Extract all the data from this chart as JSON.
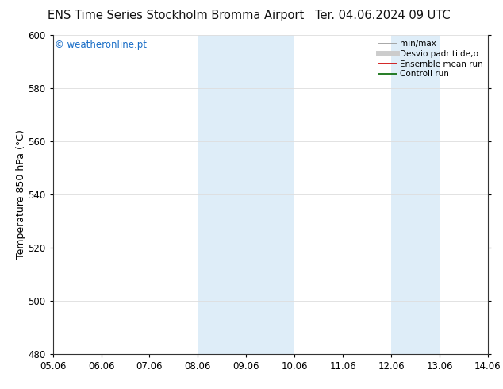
{
  "title_left": "ENS Time Series Stockholm Bromma Airport",
  "title_right": "Ter. 04.06.2024 09 UTC",
  "ylabel": "Temperature 850 hPa (°C)",
  "ylim": [
    480,
    600
  ],
  "yticks": [
    480,
    500,
    520,
    540,
    560,
    580,
    600
  ],
  "xlim": [
    0,
    9
  ],
  "xtick_labels": [
    "05.06",
    "06.06",
    "07.06",
    "08.06",
    "09.06",
    "10.06",
    "11.06",
    "12.06",
    "13.06",
    "14.06"
  ],
  "xtick_positions": [
    0,
    1,
    2,
    3,
    4,
    5,
    6,
    7,
    8,
    9
  ],
  "shaded_bands": [
    {
      "xmin": 3.0,
      "xmax": 5.0
    },
    {
      "xmin": 7.0,
      "xmax": 8.0
    }
  ],
  "band_color": "#deedf8",
  "watermark": "© weatheronline.pt",
  "watermark_color": "#1a6ec7",
  "legend_entries": [
    {
      "label": "min/max",
      "color": "#999999",
      "lw": 1.2,
      "type": "line"
    },
    {
      "label": "Desvio padr tilde;o",
      "color": "#cccccc",
      "lw": 5,
      "type": "line"
    },
    {
      "label": "Ensemble mean run",
      "color": "#cc0000",
      "lw": 1.2,
      "type": "line"
    },
    {
      "label": "Controll run",
      "color": "#006600",
      "lw": 1.2,
      "type": "line"
    }
  ],
  "bg_color": "#ffffff",
  "axes_bg_color": "#ffffff",
  "spine_color": "#333333",
  "title_fontsize": 10.5,
  "label_fontsize": 9,
  "tick_fontsize": 8.5,
  "legend_fontsize": 7.5
}
